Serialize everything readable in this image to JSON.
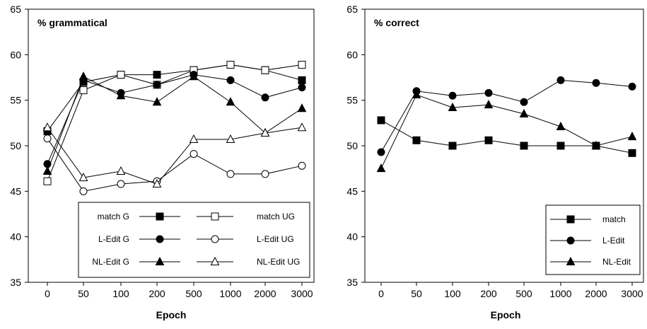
{
  "chart_data": [
    {
      "type": "line",
      "title": "% grammatical",
      "xlabel": "Epoch",
      "ylabel": "",
      "categories": [
        "0",
        "50",
        "100",
        "200",
        "500",
        "1000",
        "2000",
        "3000"
      ],
      "yticks": [
        "35",
        "40",
        "45",
        "50",
        "55",
        "60",
        "65"
      ],
      "ylim": [
        35,
        65
      ],
      "grid": false,
      "legend_position": "bottom-right",
      "series": [
        {
          "name": "match G",
          "marker": "square",
          "fill": "filled",
          "values": [
            51.6,
            57.0,
            57.8,
            57.8,
            58.3,
            58.9,
            58.3,
            57.2
          ]
        },
        {
          "name": "match UG",
          "marker": "square",
          "fill": "open",
          "values": [
            46.1,
            56.1,
            57.8,
            56.7,
            58.3,
            58.9,
            58.3,
            58.9
          ]
        },
        {
          "name": "L-Edit G",
          "marker": "circle",
          "fill": "filled",
          "values": [
            48.0,
            57.2,
            55.8,
            56.7,
            57.8,
            57.2,
            55.3,
            56.4
          ]
        },
        {
          "name": "L-Edit UG",
          "marker": "circle",
          "fill": "open",
          "values": [
            50.8,
            45.0,
            45.8,
            46.1,
            49.1,
            46.9,
            46.9,
            47.8
          ]
        },
        {
          "name": "NL-Edit G",
          "marker": "triangle",
          "fill": "filled",
          "values": [
            47.2,
            57.6,
            55.5,
            54.8,
            57.6,
            54.8,
            51.4,
            54.1
          ]
        },
        {
          "name": "NL-Edit UG",
          "marker": "triangle",
          "fill": "open",
          "values": [
            52.0,
            46.5,
            47.2,
            45.8,
            50.7,
            50.7,
            51.4,
            52.0
          ]
        }
      ]
    },
    {
      "type": "line",
      "title": "% correct",
      "xlabel": "Epoch",
      "ylabel": "",
      "categories": [
        "0",
        "50",
        "100",
        "200",
        "500",
        "1000",
        "2000",
        "3000"
      ],
      "yticks": [
        "35",
        "40",
        "45",
        "50",
        "55",
        "60",
        "65"
      ],
      "ylim": [
        35,
        65
      ],
      "grid": false,
      "legend_position": "bottom-right",
      "series": [
        {
          "name": "match",
          "marker": "square",
          "fill": "filled",
          "values": [
            52.8,
            50.6,
            50.0,
            50.6,
            50.0,
            50.0,
            50.0,
            49.2
          ]
        },
        {
          "name": "L-Edit",
          "marker": "circle",
          "fill": "filled",
          "values": [
            49.3,
            56.0,
            55.5,
            55.8,
            54.8,
            57.2,
            56.9,
            56.5
          ]
        },
        {
          "name": "NL-Edit",
          "marker": "triangle",
          "fill": "filled",
          "values": [
            47.5,
            55.6,
            54.2,
            54.5,
            53.5,
            52.1,
            50.0,
            51.0
          ]
        }
      ]
    }
  ]
}
